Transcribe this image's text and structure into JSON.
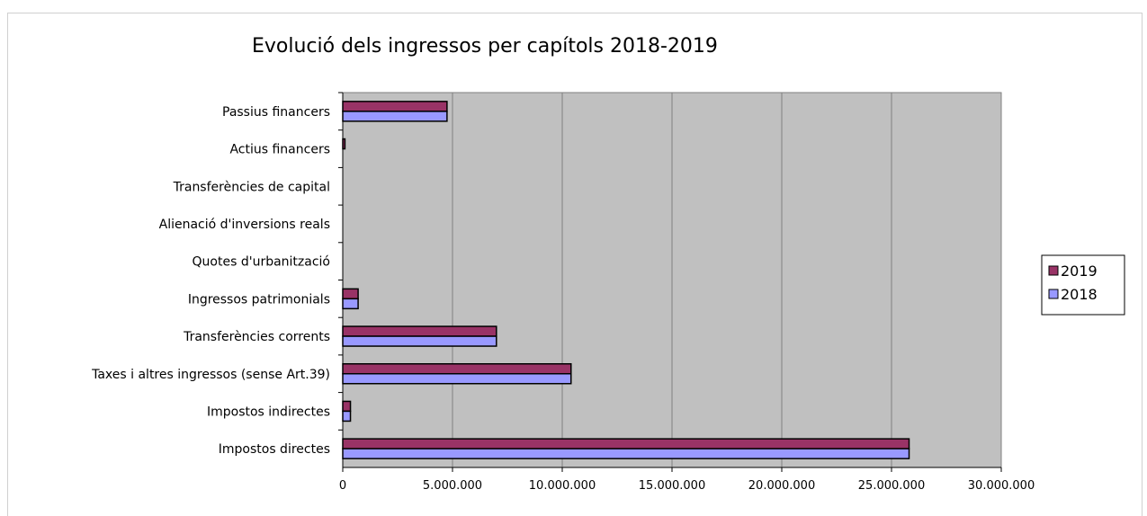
{
  "chart_data": {
    "type": "bar",
    "orientation": "horizontal",
    "title": "Evolució dels ingressos per capítols 2018-2019",
    "xlabel": "",
    "ylabel": "",
    "xlim": [
      0,
      30000000
    ],
    "x_ticks": [
      0,
      5000000,
      10000000,
      15000000,
      20000000,
      25000000,
      30000000
    ],
    "x_tick_labels": [
      "0",
      "5.000.000",
      "10.000.000",
      "15.000.000",
      "20.000.000",
      "25.000.000",
      "30.000.000"
    ],
    "grid": true,
    "legend_position": "right",
    "categories": [
      "Impostos directes",
      "Impostos indirectes",
      "Taxes i altres ingressos (sense Art.39)",
      "Transferències corrents",
      "Ingressos patrimonials",
      "Quotes d'urbanització",
      "Alienació d'inversions reals",
      "Transferències de capital",
      "Actius financers",
      "Passius financers"
    ],
    "series": [
      {
        "name": "2019",
        "color": "#993366",
        "values": [
          25800000,
          350000,
          10400000,
          7000000,
          700000,
          0,
          0,
          0,
          100000,
          4750000
        ]
      },
      {
        "name": "2018",
        "color": "#9999ff",
        "values": [
          25800000,
          350000,
          10400000,
          7000000,
          700000,
          0,
          0,
          0,
          0,
          4750000
        ]
      }
    ],
    "plot_background": "#c0c0c0",
    "gridline_color": "#808080"
  }
}
